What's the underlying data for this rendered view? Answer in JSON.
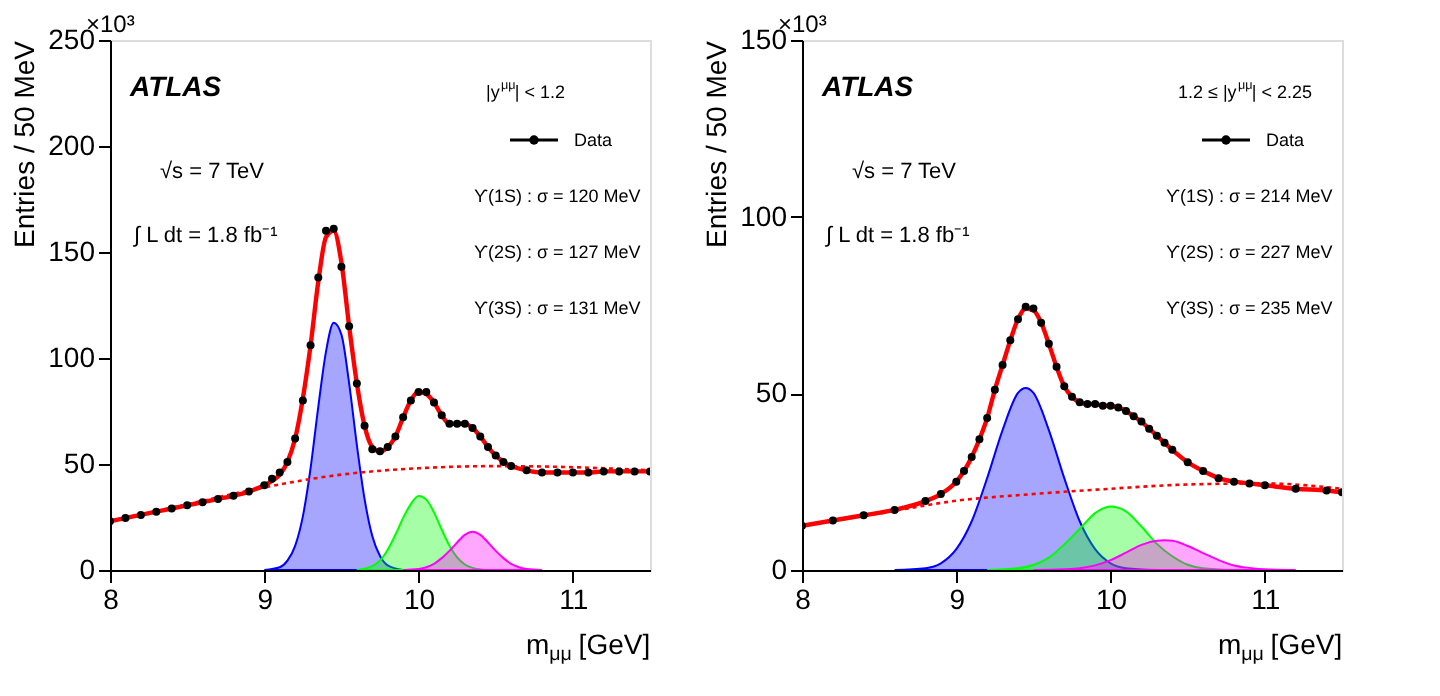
{
  "chart_data": [
    {
      "type": "scatter",
      "xlabel": "m$_{μμ}$ [GeV]",
      "ylabel": "Entries / 50 MeV",
      "xlim": [
        8,
        11.5
      ],
      "xticks": [
        8,
        9,
        10,
        11
      ],
      "ylim": [
        0,
        250
      ],
      "yticks": [
        0,
        50,
        100,
        150,
        200,
        250
      ],
      "grid": false,
      "legend": "top right",
      "annotations": [
        "×10³",
        "ATLAS",
        "√s = 7 TeV",
        "∫ L dt = 1.8 fb⁻¹",
        "|y$^{μμ}$| < 1.2",
        "ϒ(1S) : σ = 120 MeV",
        "ϒ(2S) : σ = 127 MeV",
        "ϒ(3S) : σ = 131 MeV"
      ],
      "series": [
        {
          "type": "area",
          "color": "#0000ff",
          "x": [
            9.0,
            9.1,
            9.15,
            9.2,
            9.25,
            9.3,
            9.35,
            9.4,
            9.45,
            9.5,
            9.55,
            9.6,
            9.65,
            9.7,
            9.75,
            9.8,
            9.9
          ],
          "values": [
            0,
            1.3,
            4.4,
            11.4,
            25.3,
            48,
            77,
            103,
            116.6,
            111,
            88,
            59,
            33.5,
            16,
            6.6,
            2.2,
            0
          ]
        },
        {
          "type": "area",
          "color": "#00ff00",
          "x": [
            9.6,
            9.7,
            9.75,
            9.8,
            9.85,
            9.9,
            9.95,
            10.0,
            10.05,
            10.1,
            10.15,
            10.2,
            10.25,
            10.3,
            10.35,
            10.45
          ],
          "values": [
            0,
            1.8,
            4.5,
            9.6,
            16.6,
            24.6,
            31.1,
            34.9,
            33.2,
            27.2,
            19.1,
            11.5,
            5.9,
            2.6,
            1,
            0
          ]
        },
        {
          "type": "area",
          "color": "#ff00ff",
          "x": [
            9.9,
            10.0,
            10.05,
            10.1,
            10.15,
            10.2,
            10.25,
            10.3,
            10.35,
            10.4,
            10.45,
            10.5,
            10.55,
            10.6,
            10.65,
            10.7,
            10.8
          ],
          "values": [
            0,
            0.5,
            1.3,
            2.9,
            5.6,
            9,
            13,
            16.6,
            18,
            16.6,
            13,
            9,
            5.6,
            2.9,
            1.3,
            0.5,
            0
          ]
        },
        {
          "type": "line",
          "line_style": "dotted",
          "color": "#ff0000",
          "x": [
            8,
            8.5,
            9,
            9.5,
            10,
            10.5,
            11,
            11.5
          ],
          "values": [
            23,
            31,
            39,
            45,
            48,
            49,
            48.5,
            47
          ]
        },
        {
          "type": "line",
          "line_style": "solid",
          "color": "#ff0000",
          "x": [
            8.0,
            8.1,
            8.2,
            8.3,
            8.4,
            8.5,
            8.6,
            8.7,
            8.8,
            8.9,
            9.0,
            9.05,
            9.1,
            9.15,
            9.2,
            9.25,
            9.3,
            9.35,
            9.4,
            9.45,
            9.5,
            9.55,
            9.6,
            9.65,
            9.7,
            9.75,
            9.8,
            9.85,
            9.9,
            9.95,
            10.0,
            10.05,
            10.1,
            10.15,
            10.2,
            10.25,
            10.3,
            10.35,
            10.4,
            10.45,
            10.5,
            10.55,
            10.6,
            10.7,
            10.8,
            10.9,
            11.0,
            11.1,
            11.2,
            11.3,
            11.4,
            11.5
          ],
          "values": [
            23,
            24.5,
            26,
            27.5,
            29,
            30.5,
            32,
            33.5,
            35,
            37,
            40,
            42,
            45,
            51,
            62,
            81,
            106,
            136,
            157,
            160,
            145,
            115,
            88,
            68,
            58,
            56,
            58,
            63,
            72,
            80,
            84,
            83,
            79,
            73,
            69,
            69,
            69,
            67,
            63,
            58,
            54,
            51,
            49,
            47,
            46,
            46,
            46,
            46,
            46.5,
            46.5,
            46.5,
            46.5
          ]
        },
        {
          "name": "Data",
          "marker": "circle",
          "color": "#000000",
          "x": [
            8.0,
            8.1,
            8.2,
            8.3,
            8.4,
            8.5,
            8.6,
            8.7,
            8.8,
            8.9,
            9.0,
            9.05,
            9.1,
            9.15,
            9.2,
            9.25,
            9.3,
            9.35,
            9.4,
            9.45,
            9.5,
            9.55,
            9.6,
            9.65,
            9.7,
            9.75,
            9.8,
            9.85,
            9.9,
            9.95,
            10.0,
            10.05,
            10.1,
            10.15,
            10.2,
            10.25,
            10.3,
            10.35,
            10.4,
            10.45,
            10.5,
            10.55,
            10.6,
            10.7,
            10.8,
            10.9,
            11.0,
            11.1,
            11.2,
            11.3,
            11.4,
            11.5
          ],
          "values": [
            23,
            24.5,
            26,
            27.5,
            29,
            30.5,
            32,
            33.5,
            35,
            37,
            40,
            43,
            46,
            51,
            62,
            80,
            106,
            138,
            160,
            161,
            143,
            115,
            88,
            68,
            57,
            56,
            58,
            63,
            72,
            80,
            84,
            84,
            79,
            73,
            69,
            69,
            69,
            67,
            63,
            58,
            54,
            51,
            49,
            47,
            46,
            46,
            46,
            46,
            46.5,
            46.5,
            46.5,
            46.5
          ]
        }
      ]
    },
    {
      "type": "scatter",
      "xlabel": "m$_{μμ}$ [GeV]",
      "ylabel": "Entries / 50 MeV",
      "xlim": [
        8,
        11.5
      ],
      "xticks": [
        8,
        9,
        10,
        11
      ],
      "ylim": [
        0,
        150
      ],
      "yticks": [
        0,
        50,
        100,
        150
      ],
      "grid": false,
      "legend": "top right",
      "annotations": [
        "×10³",
        "ATLAS",
        "√s = 7 TeV",
        "∫ L dt = 1.8 fb⁻¹",
        "1.2 ≤ |y$^{μμ}$| < 2.25",
        "ϒ(1S) : σ = 214 MeV",
        "ϒ(2S) : σ = 227 MeV",
        "ϒ(3S) : σ = 235 MeV"
      ],
      "series": [
        {
          "type": "area",
          "color": "#0000ff",
          "x": [
            8.6,
            8.8,
            8.9,
            9.0,
            9.1,
            9.2,
            9.3,
            9.4,
            9.45,
            9.5,
            9.6,
            9.7,
            9.8,
            9.9,
            10.0,
            10.1,
            10.3
          ],
          "values": [
            0,
            0.5,
            1.9,
            5.9,
            13.8,
            26,
            39.6,
            50.1,
            51.5,
            50.1,
            39.6,
            26,
            13.8,
            5.9,
            1.9,
            0.5,
            0
          ]
        },
        {
          "type": "area",
          "color": "#00ff00",
          "x": [
            9.2,
            9.4,
            9.5,
            9.6,
            9.7,
            9.8,
            9.9,
            10.0,
            10.1,
            10.2,
            10.3,
            10.4,
            10.5,
            10.6,
            10.8
          ],
          "values": [
            0,
            0.5,
            1.4,
            3.5,
            7.2,
            11.6,
            16.1,
            18,
            16.6,
            12.3,
            7.4,
            3.9,
            1.5,
            0.5,
            0
          ]
        },
        {
          "type": "area",
          "color": "#ff00ff",
          "x": [
            9.5,
            9.7,
            9.8,
            9.9,
            10.0,
            10.1,
            10.2,
            10.3,
            10.35,
            10.4,
            10.5,
            10.6,
            10.7,
            10.8,
            10.9,
            11.0,
            11.2
          ],
          "values": [
            0,
            0.2,
            0.5,
            1.3,
            2.8,
            4.9,
            7.1,
            8.3,
            8.4,
            8.3,
            6.8,
            4.8,
            2.8,
            1.3,
            0.6,
            0.2,
            0
          ]
        },
        {
          "type": "line",
          "line_style": "dotted",
          "color": "#ff0000",
          "x": [
            8,
            8.5,
            9,
            9.5,
            10,
            10.5,
            11,
            11.5
          ],
          "values": [
            12.5,
            16,
            19.6,
            21.5,
            23,
            24.2,
            24.5,
            23
          ]
        },
        {
          "type": "line",
          "line_style": "solid",
          "color": "#ff0000",
          "x": [
            8.0,
            8.2,
            8.4,
            8.6,
            8.8,
            8.9,
            9.0,
            9.05,
            9.1,
            9.15,
            9.2,
            9.25,
            9.3,
            9.35,
            9.4,
            9.45,
            9.5,
            9.55,
            9.6,
            9.65,
            9.7,
            9.75,
            9.8,
            9.85,
            9.9,
            9.95,
            10.0,
            10.05,
            10.1,
            10.15,
            10.2,
            10.25,
            10.3,
            10.35,
            10.4,
            10.5,
            10.6,
            10.7,
            10.8,
            10.9,
            11.0,
            11.2,
            11.4,
            11.5
          ],
          "values": [
            12.5,
            14,
            15.5,
            17,
            19.5,
            21.5,
            25,
            28,
            32,
            37,
            43,
            51,
            58,
            65,
            71,
            74,
            73.5,
            70,
            64,
            57.5,
            52,
            49,
            47.5,
            47,
            47,
            46.5,
            46.5,
            46,
            45,
            43.5,
            42,
            40,
            38,
            36,
            34,
            30.5,
            28,
            26,
            25,
            24.5,
            24,
            23,
            22.5,
            22
          ]
        },
        {
          "name": "Data",
          "marker": "circle",
          "color": "#000000",
          "x": [
            8.0,
            8.2,
            8.4,
            8.6,
            8.8,
            8.9,
            9.0,
            9.05,
            9.1,
            9.15,
            9.2,
            9.25,
            9.3,
            9.35,
            9.4,
            9.45,
            9.5,
            9.55,
            9.6,
            9.65,
            9.7,
            9.75,
            9.8,
            9.85,
            9.9,
            9.95,
            10.0,
            10.05,
            10.1,
            10.15,
            10.2,
            10.25,
            10.3,
            10.35,
            10.4,
            10.5,
            10.6,
            10.7,
            10.8,
            10.9,
            11.0,
            11.2,
            11.4,
            11.5
          ],
          "values": [
            12.5,
            14,
            15.5,
            17,
            19.5,
            21.5,
            25,
            28,
            32,
            37,
            43,
            51,
            58,
            65,
            71,
            74.5,
            74,
            70,
            64,
            57.5,
            52,
            49,
            47.5,
            47,
            47,
            46.5,
            46.5,
            46,
            45,
            43.5,
            42,
            40,
            38,
            36,
            34,
            30.5,
            28,
            26,
            25,
            24.5,
            24,
            23,
            22.5,
            22
          ]
        }
      ]
    }
  ]
}
